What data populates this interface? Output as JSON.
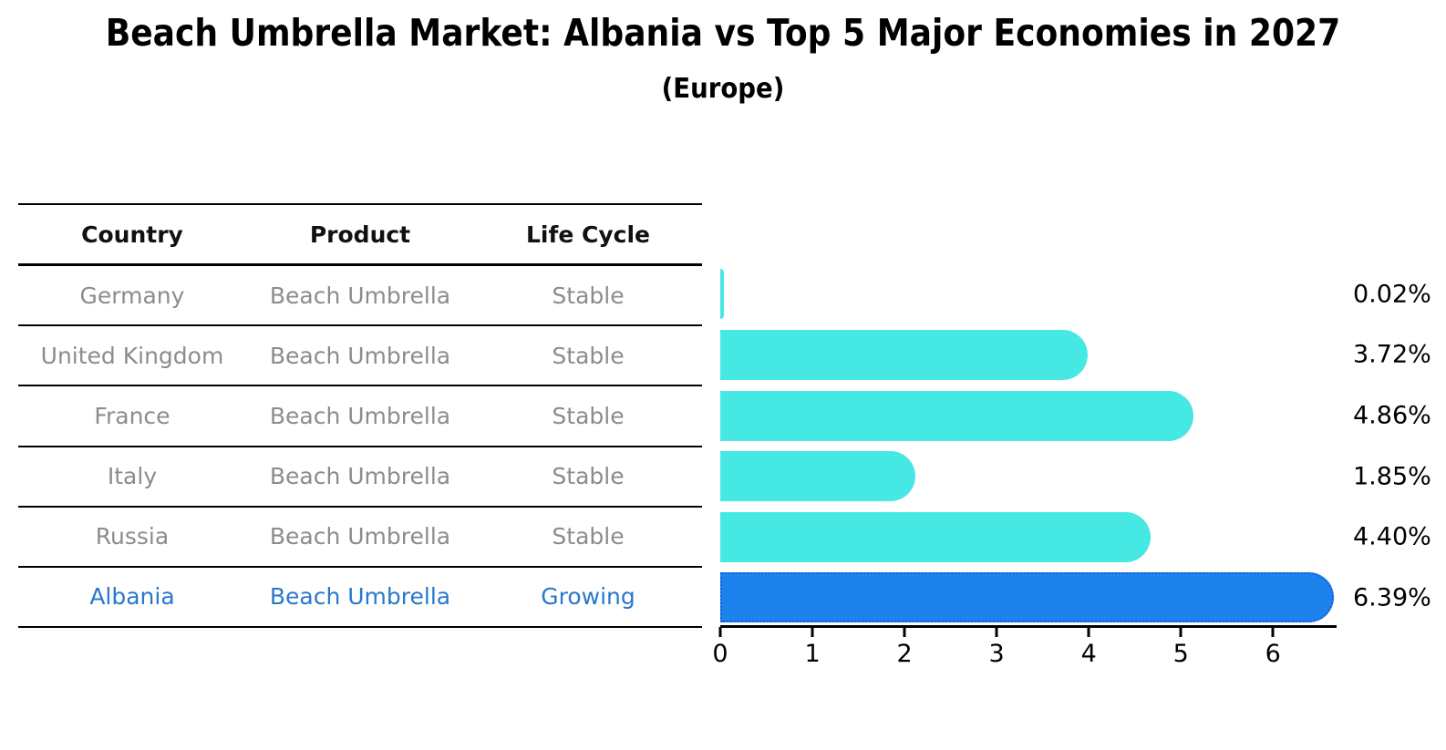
{
  "title": "Beach Umbrella Market: Albania vs Top 5 Major Economies in 2027",
  "subtitle": "(Europe)",
  "table": {
    "headers": [
      "Country",
      "Product",
      "Life Cycle"
    ],
    "rows": [
      {
        "country": "Germany",
        "product": "Beach Umbrella",
        "life_cycle": "Stable",
        "highlight": false
      },
      {
        "country": "United Kingdom",
        "product": "Beach Umbrella",
        "life_cycle": "Stable",
        "highlight": false
      },
      {
        "country": "France",
        "product": "Beach Umbrella",
        "life_cycle": "Stable",
        "highlight": false
      },
      {
        "country": "Italy",
        "product": "Beach Umbrella",
        "life_cycle": "Stable",
        "highlight": false
      },
      {
        "country": "Russia",
        "product": "Beach Umbrella",
        "life_cycle": "Stable",
        "highlight": false
      },
      {
        "country": "Albania",
        "product": "Beach Umbrella",
        "life_cycle": "Growing",
        "highlight": true
      }
    ]
  },
  "chart_data": {
    "type": "bar",
    "orientation": "horizontal",
    "title": "Beach Umbrella Market: Albania vs Top 5 Major Economies in 2027",
    "subtitle": "(Europe)",
    "categories": [
      "Germany",
      "United Kingdom",
      "France",
      "Italy",
      "Russia",
      "Albania"
    ],
    "values": [
      0.02,
      3.72,
      4.86,
      1.85,
      4.4,
      6.39
    ],
    "value_labels": [
      "0.02%",
      "3.72%",
      "4.86%",
      "1.85%",
      "4.40%",
      "6.39%"
    ],
    "x_ticks": [
      0,
      1,
      2,
      3,
      4,
      5,
      6
    ],
    "xlim": [
      0,
      6.69
    ],
    "grid": false,
    "legend": false,
    "bar_color": "#46e8e4",
    "highlight_index": 5,
    "highlight_bar_color": "#1e82ec",
    "highlight_border_color": "#1060d8"
  },
  "colors": {
    "background": "#ffffff",
    "table_text": "#8c8c8c",
    "header_text": "#111111",
    "highlight_text": "#2878cc",
    "axis": "#000000"
  }
}
